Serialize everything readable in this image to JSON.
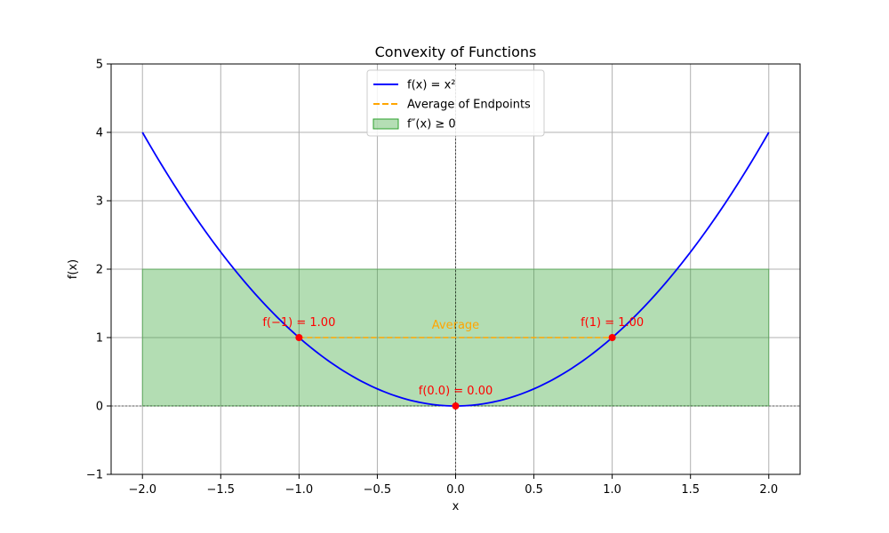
{
  "chart_data": {
    "type": "line",
    "title": "Convexity of Functions",
    "xlabel": "x",
    "ylabel": "f(x)",
    "xlim": [
      -2.2,
      2.2
    ],
    "ylim": [
      -1,
      5
    ],
    "xticks": [
      -2.0,
      -1.5,
      -1.0,
      -0.5,
      0.0,
      0.5,
      1.0,
      1.5,
      2.0
    ],
    "xtick_labels": [
      "−2.0",
      "−1.5",
      "−1.0",
      "−0.5",
      "0.0",
      "0.5",
      "1.0",
      "1.5",
      "2.0"
    ],
    "yticks": [
      -1,
      0,
      1,
      2,
      3,
      4,
      5
    ],
    "ytick_labels": [
      "−1",
      "0",
      "1",
      "2",
      "3",
      "4",
      "5"
    ],
    "grid": true,
    "legend_position": "top-center",
    "series": [
      {
        "name": "f(x) = x²",
        "kind": "curve",
        "function": "x^2",
        "x_range": [
          -2,
          2
        ],
        "color": "#0000ff"
      },
      {
        "name": "Average of Endpoints",
        "kind": "dashed-line",
        "x": [
          -1,
          1
        ],
        "y": [
          1,
          1
        ],
        "color": "#ffa500"
      },
      {
        "name": "f″(x) ≥ 0",
        "kind": "shaded-region",
        "x_range": [
          -2,
          2
        ],
        "y_range": [
          0,
          2
        ],
        "color": "#2ca02c"
      }
    ],
    "points": [
      {
        "x": -1.0,
        "y": 1.0,
        "label": "f(−1) = 1.00"
      },
      {
        "x": 1.0,
        "y": 1.0,
        "label": "f(1) = 1.00"
      },
      {
        "x": 0.0,
        "y": 0.0,
        "label": "f(0.0) = 0.00"
      }
    ],
    "point_color": "#ff0000",
    "annotation": {
      "text": "Average",
      "x": 0.0,
      "y": 1.18,
      "color": "#ffa500"
    },
    "reference_lines": {
      "x0": 0,
      "y0": 0
    }
  }
}
